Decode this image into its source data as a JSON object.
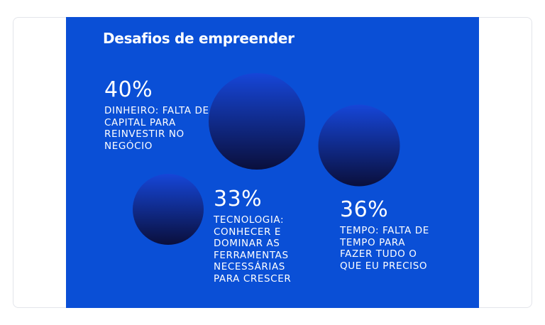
{
  "panel": {
    "background": "#0a4fd6"
  },
  "chart_data": {
    "type": "bubble",
    "title": "Desafios de empreender",
    "unit": "%",
    "series": [
      {
        "name": "Dinheiro",
        "value": 40,
        "pct_label": "40%",
        "description": "DINHEIRO: FALTA DE CAPITAL PARA REINVESTIR NO NEGÓCIO"
      },
      {
        "name": "Tecnologia",
        "value": 33,
        "pct_label": "33%",
        "description": "TECNOLOGIA: CONHECER E DOMINAR AS FERRAMENTAS NECESSÁRIAS PARA CRESCER"
      },
      {
        "name": "Tempo",
        "value": 36,
        "pct_label": "36%",
        "description": "TEMPO: FALTA DE TEMPO PARA FAZER TUDO O QUE EU PRECISO"
      }
    ],
    "bubble_gradient": [
      "#1646d8",
      "#0a0f3c"
    ]
  }
}
